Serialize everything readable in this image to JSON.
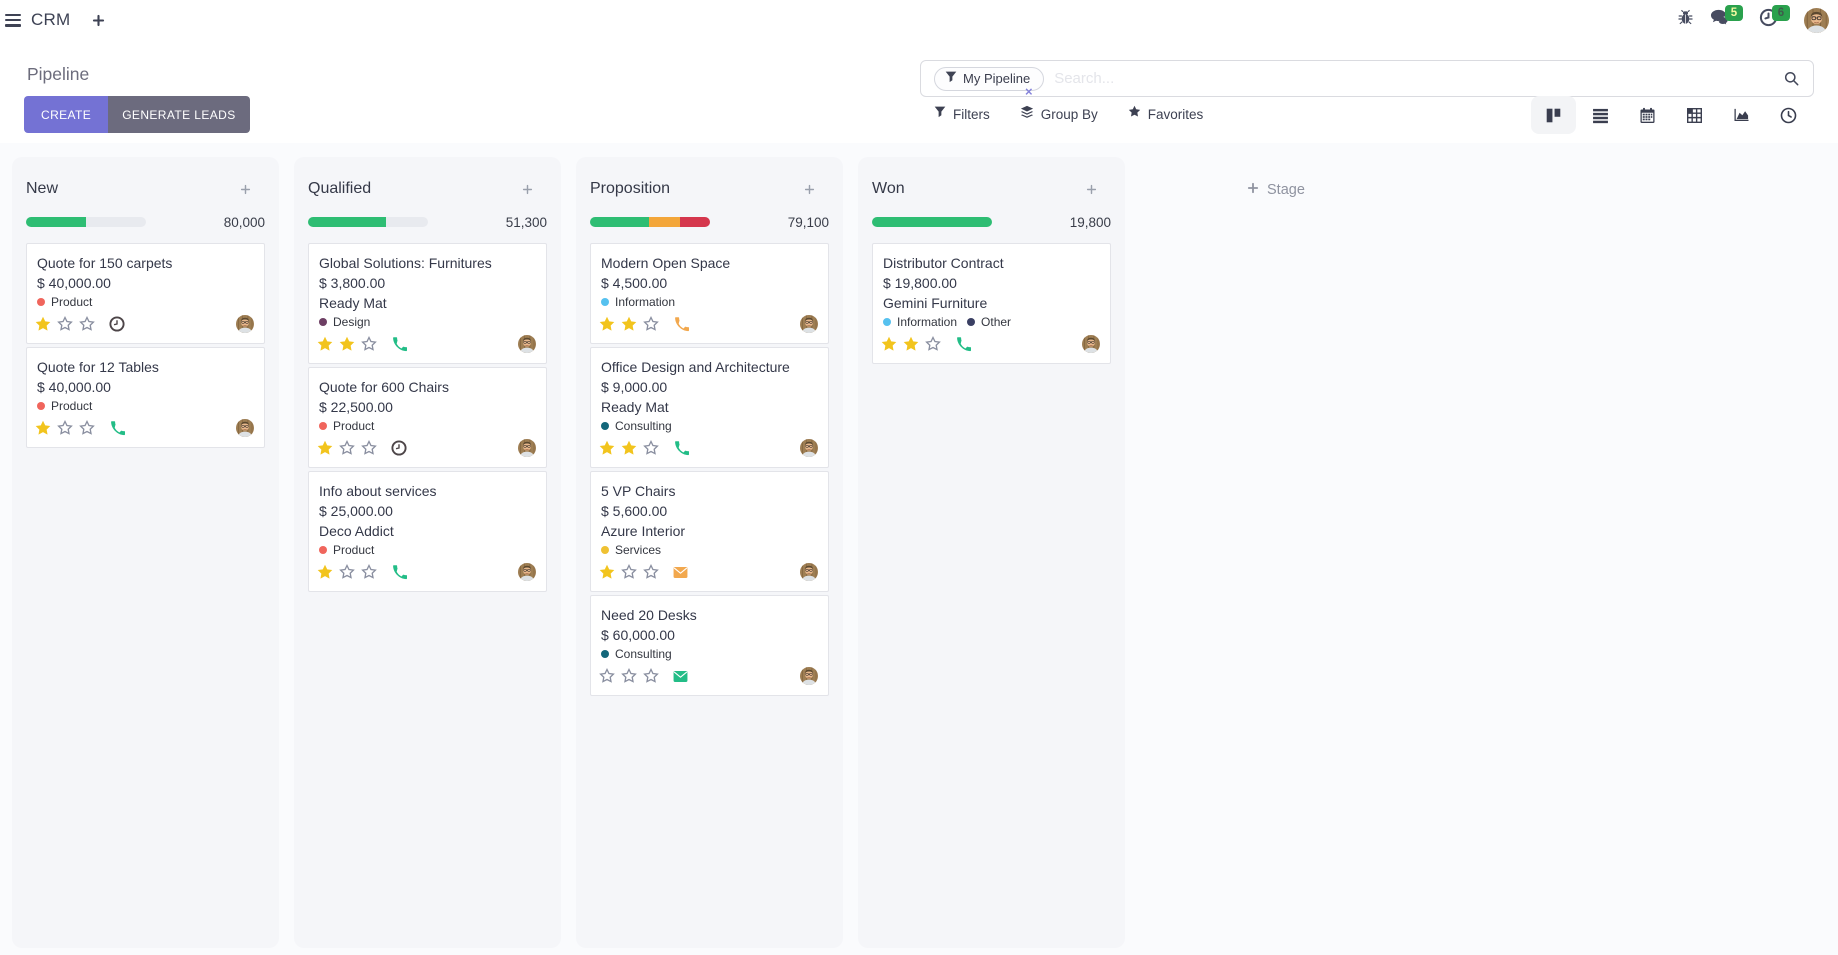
{
  "navbar": {
    "app": "CRM",
    "badges": {
      "messages": "5",
      "activities": "6"
    }
  },
  "panel": {
    "title": "Pipeline",
    "buttons": {
      "create": "CREATE",
      "generate_leads": "GENERATE LEADS"
    },
    "search": {
      "facet": "My Pipeline",
      "placeholder": "Search...",
      "remove": "×"
    },
    "menus": {
      "filters": "Filters",
      "group_by": "Group By",
      "favorites": "Favorites"
    },
    "view_switcher": [
      "kanban",
      "list",
      "calendar",
      "pivot",
      "graph",
      "activity"
    ],
    "active_view": "kanban"
  },
  "board": {
    "stage_adder": "Stage",
    "columns": [
      {
        "name": "New",
        "total": "80,000",
        "progress": [
          {
            "type": "success",
            "pct": 50
          }
        ],
        "cards": [
          {
            "title": "Quote for 150 carpets",
            "amount": "$ 40,000.00",
            "tags": [
              {
                "label": "Product",
                "color": "product"
              }
            ],
            "stars": 1,
            "activity": "clock"
          },
          {
            "title": "Quote for 12 Tables",
            "amount": "$ 40,000.00",
            "tags": [
              {
                "label": "Product",
                "color": "product"
              }
            ],
            "stars": 1,
            "activity": "phone-success"
          }
        ]
      },
      {
        "name": "Qualified",
        "total": "51,300",
        "progress": [
          {
            "type": "success",
            "pct": 65
          }
        ],
        "cards": [
          {
            "title": "Global Solutions: Furnitures",
            "amount": "$ 3,800.00",
            "partner": "Ready Mat",
            "tags": [
              {
                "label": "Design",
                "color": "design"
              }
            ],
            "stars": 2,
            "activity": "phone-success"
          },
          {
            "title": "Quote for 600 Chairs",
            "amount": "$ 22,500.00",
            "tags": [
              {
                "label": "Product",
                "color": "product"
              }
            ],
            "stars": 1,
            "activity": "clock"
          },
          {
            "title": "Info about services",
            "amount": "$ 25,000.00",
            "partner": "Deco Addict",
            "tags": [
              {
                "label": "Product",
                "color": "product"
              }
            ],
            "stars": 1,
            "activity": "phone-success"
          }
        ]
      },
      {
        "name": "Proposition",
        "total": "79,100",
        "progress": [
          {
            "type": "success",
            "pct": 49
          },
          {
            "type": "warning",
            "pct": 26
          },
          {
            "type": "danger",
            "pct": 25
          }
        ],
        "cards": [
          {
            "title": "Modern Open Space",
            "amount": "$ 4,500.00",
            "tags": [
              {
                "label": "Information",
                "color": "information"
              }
            ],
            "stars": 2,
            "activity": "phone-warning"
          },
          {
            "title": "Office Design and Architecture",
            "amount": "$ 9,000.00",
            "partner": "Ready Mat",
            "tags": [
              {
                "label": "Consulting",
                "color": "consulting"
              }
            ],
            "stars": 2,
            "activity": "phone-success"
          },
          {
            "title": "5 VP Chairs",
            "amount": "$ 5,600.00",
            "partner": "Azure Interior",
            "tags": [
              {
                "label": "Services",
                "color": "services"
              }
            ],
            "stars": 1,
            "activity": "envelope-warning"
          },
          {
            "title": "Need 20 Desks",
            "amount": "$ 60,000.00",
            "tags": [
              {
                "label": "Consulting",
                "color": "consulting"
              }
            ],
            "stars": 0,
            "activity": "envelope-success"
          }
        ]
      },
      {
        "name": "Won",
        "total": "19,800",
        "progress": [
          {
            "type": "success",
            "pct": 100
          }
        ],
        "cards": [
          {
            "title": "Distributor Contract",
            "amount": "$ 19,800.00",
            "partner": "Gemini Furniture",
            "tags": [
              {
                "label": "Information",
                "color": "information"
              },
              {
                "label": "Other",
                "color": "other"
              }
            ],
            "stars": 2,
            "activity": "phone-success"
          }
        ]
      }
    ]
  },
  "colors": {
    "accent": "#7472d4",
    "button_secondary": "#6c6b7e",
    "badge": "#2aa14d",
    "progress": {
      "success": "#2ebd73",
      "warning": "#f3a63a",
      "danger": "#d5374d"
    },
    "tags": {
      "product": "#f0655c",
      "design": "#6d3e63",
      "information": "#56c1ef",
      "consulting": "#13677a",
      "services": "#efc132",
      "other": "#3a3f63"
    },
    "activity": {
      "success": "#23bd87",
      "warning": "#f2a84e",
      "clock": "#4d4548"
    },
    "star_on": "#f2c41d",
    "star_off": "#8a8fa0"
  }
}
